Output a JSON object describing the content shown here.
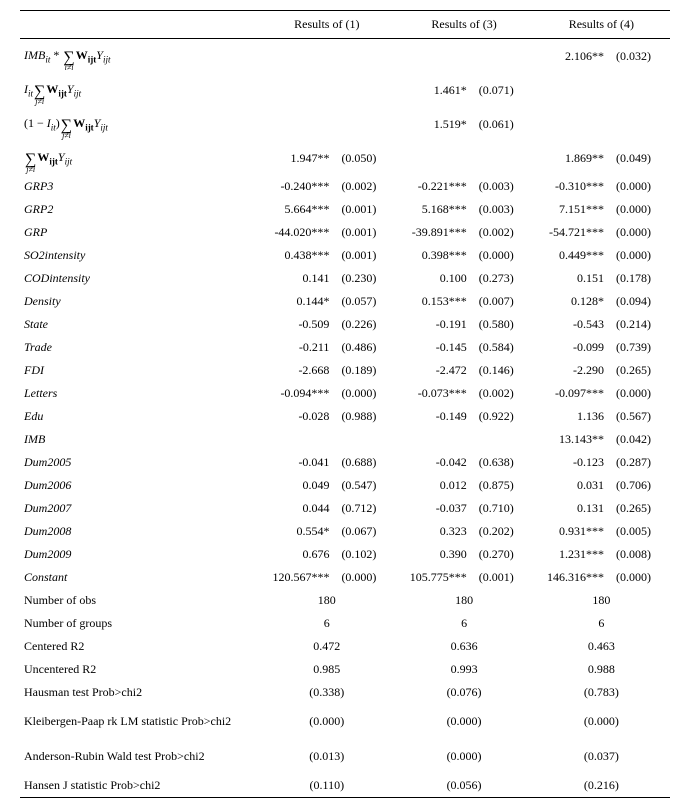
{
  "headers": {
    "blank": "",
    "col1": "Results of (1)",
    "col3": "Results of (3)",
    "col4": "Results of (4)"
  },
  "rows": [
    {
      "label_html": "<span class='math-term'>IMB<span class='sub'>it</span></span> * <span class='sumwrap'><span class='sigma'>∑</span><span class='sumbot'>i≠i</span></span><b>W<span class='sub'>ijt</span></b><span class='math-term'>Y<span class='sub'>ijt</span></span>",
      "r1e": "",
      "r1p": "",
      "r3e": "",
      "r3p": "",
      "r4e": "2.106**",
      "r4p": "(0.032)"
    },
    {
      "label_html": "<span class='math-term'>I<span class='sub'>it</span></span><span class='sumwrap'><span class='sigma'>∑</span><span class='sumbot'>j≠i</span></span><b>W<span class='sub'>ijt</span></b><span class='math-term'>Y<span class='sub'>ijt</span></span>",
      "r1e": "",
      "r1p": "",
      "r3e": "1.461*",
      "r3p": "(0.071)",
      "r4e": "",
      "r4p": ""
    },
    {
      "label_html": "(1 − <span class='math-term'>I<span class='sub'>it</span></span>)<span class='sumwrap'><span class='sigma'>∑</span><span class='sumbot'>j≠i</span></span><b>W<span class='sub'>ijt</span></b><span class='math-term'>Y<span class='sub'>ijt</span></span>",
      "r1e": "",
      "r1p": "",
      "r3e": "1.519*",
      "r3p": "(0.061)",
      "r4e": "",
      "r4p": ""
    },
    {
      "label_html": "<span class='sumwrap'><span class='sigma'>∑</span><span class='sumbot'>j≠i</span></span><b>W<span class='sub'>ijt</span></b><span class='math-term'>Y<span class='sub'>ijt</span></span>",
      "r1e": "1.947**",
      "r1p": "(0.050)",
      "r3e": "",
      "r3p": "",
      "r4e": "1.869**",
      "r4p": "(0.049)"
    },
    {
      "label": "GRP3",
      "r1e": "-0.240***",
      "r1p": "(0.002)",
      "r3e": "-0.221***",
      "r3p": "(0.003)",
      "r4e": "-0.310***",
      "r4p": "(0.000)"
    },
    {
      "label": "GRP2",
      "r1e": "5.664***",
      "r1p": "(0.001)",
      "r3e": "5.168***",
      "r3p": "(0.003)",
      "r4e": "7.151***",
      "r4p": "(0.000)"
    },
    {
      "label": "GRP",
      "r1e": "-44.020***",
      "r1p": "(0.001)",
      "r3e": "-39.891***",
      "r3p": "(0.002)",
      "r4e": "-54.721***",
      "r4p": "(0.000)"
    },
    {
      "label": "SO2intensity",
      "r1e": "0.438***",
      "r1p": "(0.001)",
      "r3e": "0.398***",
      "r3p": "(0.000)",
      "r4e": "0.449***",
      "r4p": "(0.000)"
    },
    {
      "label": "CODintensity",
      "r1e": "0.141",
      "r1p": "(0.230)",
      "r3e": "0.100",
      "r3p": "(0.273)",
      "r4e": "0.151",
      "r4p": "(0.178)"
    },
    {
      "label": "Density",
      "r1e": "0.144*",
      "r1p": "(0.057)",
      "r3e": "0.153***",
      "r3p": "(0.007)",
      "r4e": "0.128*",
      "r4p": "(0.094)"
    },
    {
      "label": "State",
      "r1e": "-0.509",
      "r1p": "(0.226)",
      "r3e": "-0.191",
      "r3p": "(0.580)",
      "r4e": "-0.543",
      "r4p": "(0.214)"
    },
    {
      "label": "Trade",
      "r1e": "-0.211",
      "r1p": "(0.486)",
      "r3e": "-0.145",
      "r3p": "(0.584)",
      "r4e": "-0.099",
      "r4p": "(0.739)"
    },
    {
      "label": "FDI",
      "r1e": "-2.668",
      "r1p": "(0.189)",
      "r3e": "-2.472",
      "r3p": "(0.146)",
      "r4e": "-2.290",
      "r4p": "(0.265)"
    },
    {
      "label": "Letters",
      "r1e": "-0.094***",
      "r1p": "(0.000)",
      "r3e": "-0.073***",
      "r3p": "(0.002)",
      "r4e": "-0.097***",
      "r4p": "(0.000)"
    },
    {
      "label": "Edu",
      "r1e": "-0.028",
      "r1p": "(0.988)",
      "r3e": "-0.149",
      "r3p": "(0.922)",
      "r4e": "1.136",
      "r4p": "(0.567)"
    },
    {
      "label": "IMB",
      "r1e": "",
      "r1p": "",
      "r3e": "",
      "r3p": "",
      "r4e": "13.143**",
      "r4p": "(0.042)"
    },
    {
      "label": "Dum2005",
      "r1e": "-0.041",
      "r1p": "(0.688)",
      "r3e": "-0.042",
      "r3p": "(0.638)",
      "r4e": "-0.123",
      "r4p": "(0.287)"
    },
    {
      "label": "Dum2006",
      "r1e": "0.049",
      "r1p": "(0.547)",
      "r3e": "0.012",
      "r3p": "(0.875)",
      "r4e": "0.031",
      "r4p": "(0.706)"
    },
    {
      "label": "Dum2007",
      "r1e": "0.044",
      "r1p": "(0.712)",
      "r3e": "-0.037",
      "r3p": "(0.710)",
      "r4e": "0.131",
      "r4p": "(0.265)"
    },
    {
      "label": "Dum2008",
      "r1e": "0.554*",
      "r1p": "(0.067)",
      "r3e": "0.323",
      "r3p": "(0.202)",
      "r4e": "0.931***",
      "r4p": "(0.005)"
    },
    {
      "label": "Dum2009",
      "r1e": "0.676",
      "r1p": "(0.102)",
      "r3e": "0.390",
      "r3p": "(0.270)",
      "r4e": "1.231***",
      "r4p": "(0.008)"
    },
    {
      "label": "Constant",
      "r1e": "120.567***",
      "r1p": "(0.000)",
      "r3e": "105.775***",
      "r3p": "(0.001)",
      "r4e": "146.316***",
      "r4p": "(0.000)"
    }
  ],
  "stats": [
    {
      "label": "Number of obs",
      "r1": "180",
      "r3": "180",
      "r4": "180"
    },
    {
      "label": "Number of groups",
      "r1": "6",
      "r3": "6",
      "r4": "6"
    },
    {
      "label": "Centered R2",
      "r1": "0.472",
      "r3": "0.636",
      "r4": "0.463"
    },
    {
      "label": "Uncentered R2",
      "r1": "0.985",
      "r3": "0.993",
      "r4": "0.988"
    },
    {
      "label": "Hausman test Prob>chi2",
      "r1": "(0.338)",
      "r3": "(0.076)",
      "r4": "(0.783)"
    },
    {
      "label": "Kleibergen-Paap rk LM statistic Prob>chi2",
      "r1": "(0.000)",
      "r3": "(0.000)",
      "r4": "(0.000)",
      "tall": true
    },
    {
      "label": "Anderson-Rubin Wald test Prob>chi2",
      "r1": "(0.013)",
      "r3": "(0.000)",
      "r4": "(0.037)",
      "tall": true
    },
    {
      "label": "Hansen J statistic Prob>chi2",
      "r1": "(0.110)",
      "r3": "(0.056)",
      "r4": "(0.216)",
      "last": true
    }
  ]
}
